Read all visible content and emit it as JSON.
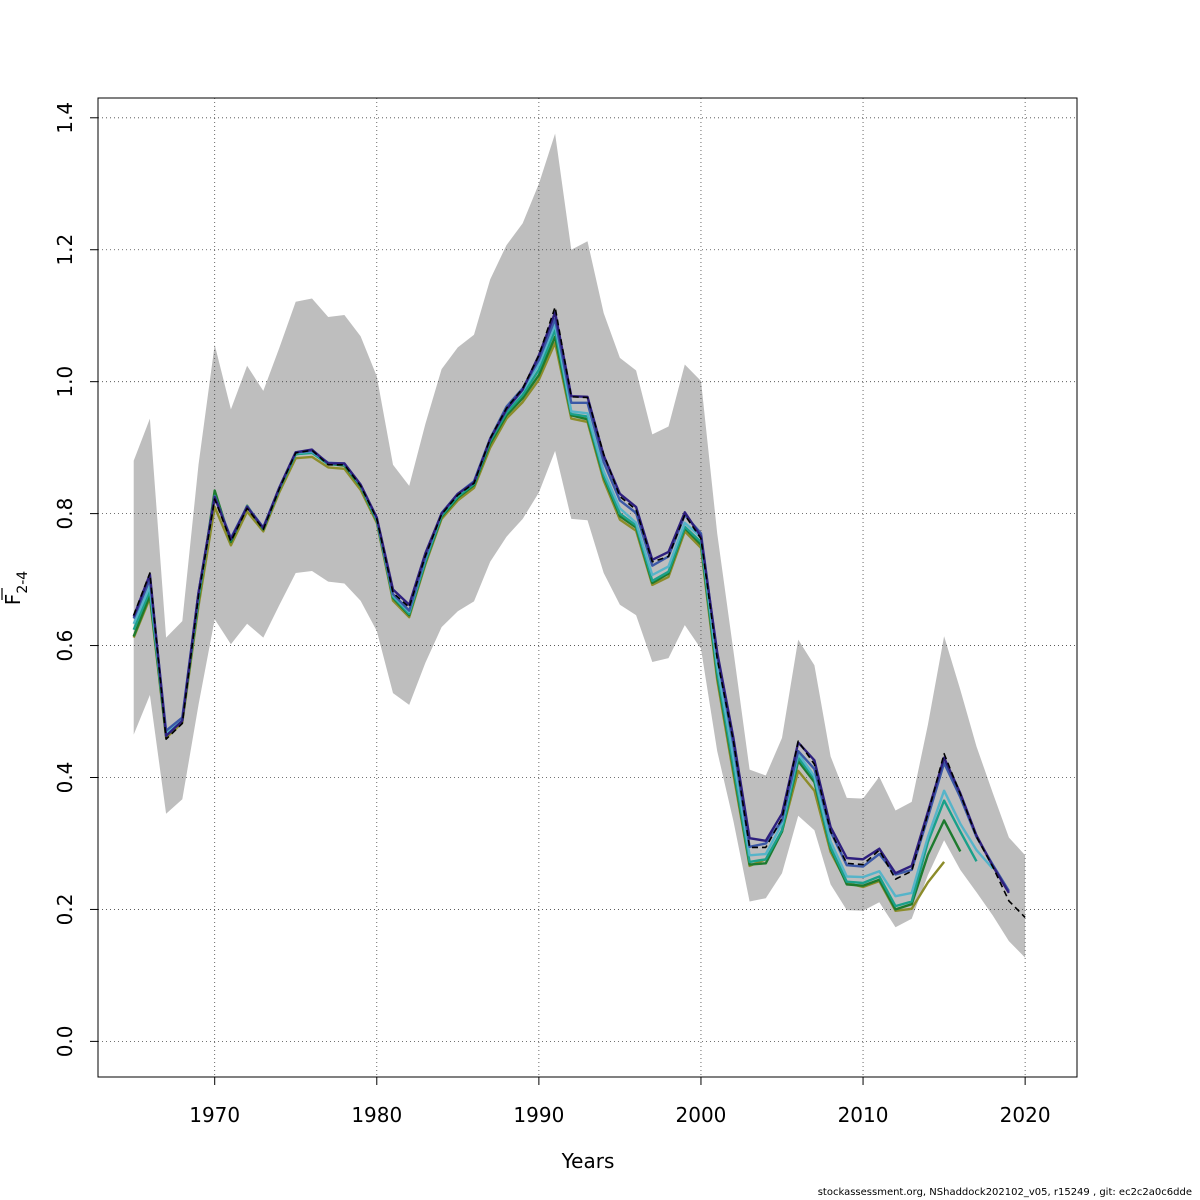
{
  "chart_data": {
    "type": "line",
    "xlabel": "Years",
    "ylabel_main": "F",
    "ylabel_sub": "2-4",
    "xlim": [
      1962.8,
      2023.2
    ],
    "ylim": [
      -0.054,
      1.43
    ],
    "x_ticks": [
      1970,
      1980,
      1990,
      2000,
      2010,
      2020
    ],
    "y_ticks": [
      0.0,
      0.2,
      0.4,
      0.6,
      0.8,
      1.0,
      1.2,
      1.4
    ],
    "x_tick_labels": [
      "1970",
      "1980",
      "1990",
      "2000",
      "2010",
      "2020"
    ],
    "y_tick_labels": [
      "0.0",
      "0.2",
      "0.4",
      "0.6",
      "0.8",
      "1.0",
      "1.2",
      "1.4"
    ],
    "grid": true,
    "colors": {
      "band": "#bebebe",
      "base": "#000000",
      "r1": "#2e1f7e",
      "r2": "#3b58a6",
      "r3": "#56b4c9",
      "r4": "#1aa08a",
      "r5": "#1e7a2e",
      "r6": "#8c8c2a"
    },
    "band": {
      "x": [
        1965,
        1966,
        1967,
        1968,
        1969,
        1970,
        1971,
        1972,
        1973,
        1974,
        1975,
        1976,
        1977,
        1978,
        1979,
        1980,
        1981,
        1982,
        1983,
        1984,
        1985,
        1986,
        1987,
        1988,
        1989,
        1990,
        1991,
        1992,
        1993,
        1994,
        1995,
        1996,
        1997,
        1998,
        1999,
        2000,
        2001,
        2002,
        2003,
        2004,
        2005,
        2006,
        2007,
        2008,
        2009,
        2010,
        2011,
        2012,
        2013,
        2014,
        2015,
        2016,
        2017,
        2018,
        2019,
        2020
      ],
      "lower": [
        0.465,
        0.525,
        0.345,
        0.367,
        0.51,
        0.64,
        0.602,
        0.633,
        0.612,
        0.662,
        0.71,
        0.713,
        0.697,
        0.694,
        0.668,
        0.622,
        0.528,
        0.51,
        0.574,
        0.628,
        0.652,
        0.667,
        0.727,
        0.765,
        0.792,
        0.832,
        0.895,
        0.792,
        0.79,
        0.71,
        0.662,
        0.646,
        0.575,
        0.581,
        0.631,
        0.595,
        0.44,
        0.334,
        0.212,
        0.217,
        0.255,
        0.342,
        0.32,
        0.238,
        0.199,
        0.198,
        0.211,
        0.173,
        0.186,
        0.252,
        0.305,
        0.26,
        0.226,
        0.191,
        0.152,
        0.127
      ],
      "upper": [
        0.88,
        0.944,
        0.612,
        0.637,
        0.874,
        1.056,
        0.958,
        1.024,
        0.986,
        1.052,
        1.121,
        1.126,
        1.098,
        1.101,
        1.069,
        1.008,
        0.874,
        0.842,
        0.936,
        1.019,
        1.052,
        1.071,
        1.155,
        1.207,
        1.24,
        1.3,
        1.376,
        1.2,
        1.213,
        1.104,
        1.036,
        1.017,
        0.92,
        0.932,
        1.026,
        1.001,
        0.77,
        0.592,
        0.412,
        0.403,
        0.46,
        0.609,
        0.57,
        0.432,
        0.369,
        0.368,
        0.401,
        0.35,
        0.363,
        0.48,
        0.614,
        0.533,
        0.447,
        0.377,
        0.309,
        0.282
      ]
    },
    "series": [
      {
        "key": "r6",
        "start": 1965,
        "values": [
          0.612,
          0.672,
          0.46,
          0.483,
          0.66,
          0.81,
          0.752,
          0.803,
          0.773,
          0.833,
          0.884,
          0.886,
          0.87,
          0.868,
          0.836,
          0.786,
          0.668,
          0.643,
          0.723,
          0.792,
          0.82,
          0.839,
          0.9,
          0.944,
          0.969,
          1.003,
          1.059,
          0.944,
          0.939,
          0.85,
          0.791,
          0.774,
          0.692,
          0.704,
          0.773,
          0.748,
          0.548,
          0.405,
          0.266,
          0.276,
          0.318,
          0.41,
          0.38,
          0.287,
          0.24,
          0.234,
          0.243,
          0.198,
          0.201,
          0.241,
          0.272
        ]
      },
      {
        "key": "r5",
        "start": 1965,
        "values": [
          0.614,
          0.676,
          0.463,
          0.487,
          0.668,
          0.835,
          0.757,
          0.812,
          0.776,
          0.838,
          0.89,
          0.893,
          0.875,
          0.873,
          0.841,
          0.789,
          0.672,
          0.646,
          0.726,
          0.795,
          0.824,
          0.843,
          0.906,
          0.949,
          0.975,
          1.01,
          1.068,
          0.949,
          0.943,
          0.855,
          0.796,
          0.779,
          0.695,
          0.709,
          0.778,
          0.753,
          0.555,
          0.413,
          0.268,
          0.27,
          0.318,
          0.425,
          0.393,
          0.292,
          0.238,
          0.236,
          0.245,
          0.2,
          0.208,
          0.283,
          0.335,
          0.288
        ]
      },
      {
        "key": "r4",
        "start": 1965,
        "values": [
          0.624,
          0.683,
          0.465,
          0.487,
          0.673,
          0.827,
          0.76,
          0.81,
          0.777,
          0.838,
          0.89,
          0.892,
          0.875,
          0.874,
          0.842,
          0.79,
          0.674,
          0.648,
          0.728,
          0.797,
          0.826,
          0.845,
          0.91,
          0.953,
          0.98,
          1.018,
          1.078,
          0.951,
          0.947,
          0.858,
          0.8,
          0.782,
          0.698,
          0.712,
          0.78,
          0.757,
          0.56,
          0.418,
          0.272,
          0.276,
          0.32,
          0.43,
          0.398,
          0.294,
          0.242,
          0.24,
          0.25,
          0.205,
          0.212,
          0.302,
          0.365,
          0.318,
          0.273
        ]
      },
      {
        "key": "r3",
        "start": 1965,
        "values": [
          0.633,
          0.69,
          0.468,
          0.49,
          0.676,
          0.826,
          0.762,
          0.811,
          0.779,
          0.84,
          0.892,
          0.894,
          0.877,
          0.875,
          0.843,
          0.792,
          0.676,
          0.651,
          0.732,
          0.8,
          0.829,
          0.848,
          0.913,
          0.958,
          0.986,
          1.026,
          1.087,
          0.955,
          0.952,
          0.864,
          0.808,
          0.786,
          0.707,
          0.72,
          0.786,
          0.764,
          0.57,
          0.43,
          0.282,
          0.284,
          0.33,
          0.436,
          0.402,
          0.303,
          0.25,
          0.249,
          0.258,
          0.22,
          0.225,
          0.31,
          0.38,
          0.33,
          0.29,
          0.262
        ]
      },
      {
        "key": "r2",
        "start": 1965,
        "values": [
          0.641,
          0.7,
          0.471,
          0.491,
          0.68,
          0.826,
          0.763,
          0.811,
          0.779,
          0.84,
          0.893,
          0.895,
          0.877,
          0.876,
          0.844,
          0.793,
          0.678,
          0.653,
          0.734,
          0.801,
          0.83,
          0.849,
          0.914,
          0.962,
          0.99,
          1.033,
          1.095,
          0.968,
          0.968,
          0.878,
          0.82,
          0.801,
          0.721,
          0.735,
          0.798,
          0.77,
          0.585,
          0.45,
          0.295,
          0.3,
          0.335,
          0.44,
          0.413,
          0.318,
          0.267,
          0.265,
          0.284,
          0.253,
          0.26,
          0.34,
          0.422,
          0.37,
          0.31,
          0.268,
          0.228
        ]
      },
      {
        "key": "r1",
        "start": 1965,
        "values": [
          0.644,
          0.708,
          0.463,
          0.486,
          0.68,
          0.825,
          0.761,
          0.81,
          0.778,
          0.84,
          0.893,
          0.897,
          0.876,
          0.876,
          0.844,
          0.794,
          0.685,
          0.662,
          0.74,
          0.8,
          0.83,
          0.847,
          0.913,
          0.958,
          0.988,
          1.04,
          1.105,
          0.978,
          0.977,
          0.888,
          0.83,
          0.81,
          0.73,
          0.742,
          0.802,
          0.765,
          0.59,
          0.46,
          0.308,
          0.304,
          0.345,
          0.453,
          0.426,
          0.325,
          0.278,
          0.276,
          0.292,
          0.255,
          0.266,
          0.348,
          0.43,
          0.376,
          0.312,
          0.266,
          0.225
        ]
      },
      {
        "key": "base",
        "start": 1965,
        "dashed": true,
        "values": [
          0.646,
          0.71,
          0.458,
          0.482,
          0.675,
          0.822,
          0.758,
          0.808,
          0.776,
          0.838,
          0.892,
          0.896,
          0.874,
          0.874,
          0.842,
          0.792,
          0.68,
          0.658,
          0.736,
          0.799,
          0.828,
          0.846,
          0.914,
          0.96,
          0.99,
          1.04,
          1.113,
          0.977,
          0.976,
          0.89,
          0.826,
          0.806,
          0.727,
          0.735,
          0.798,
          0.762,
          0.58,
          0.455,
          0.294,
          0.294,
          0.338,
          0.455,
          0.42,
          0.318,
          0.27,
          0.268,
          0.29,
          0.246,
          0.258,
          0.345,
          0.436,
          0.375,
          0.31,
          0.265,
          0.213,
          0.188
        ]
      }
    ]
  },
  "footer": "stockassessment.org, NShaddock202102_v05, r15249 , git: ec2c2a0c6dde"
}
